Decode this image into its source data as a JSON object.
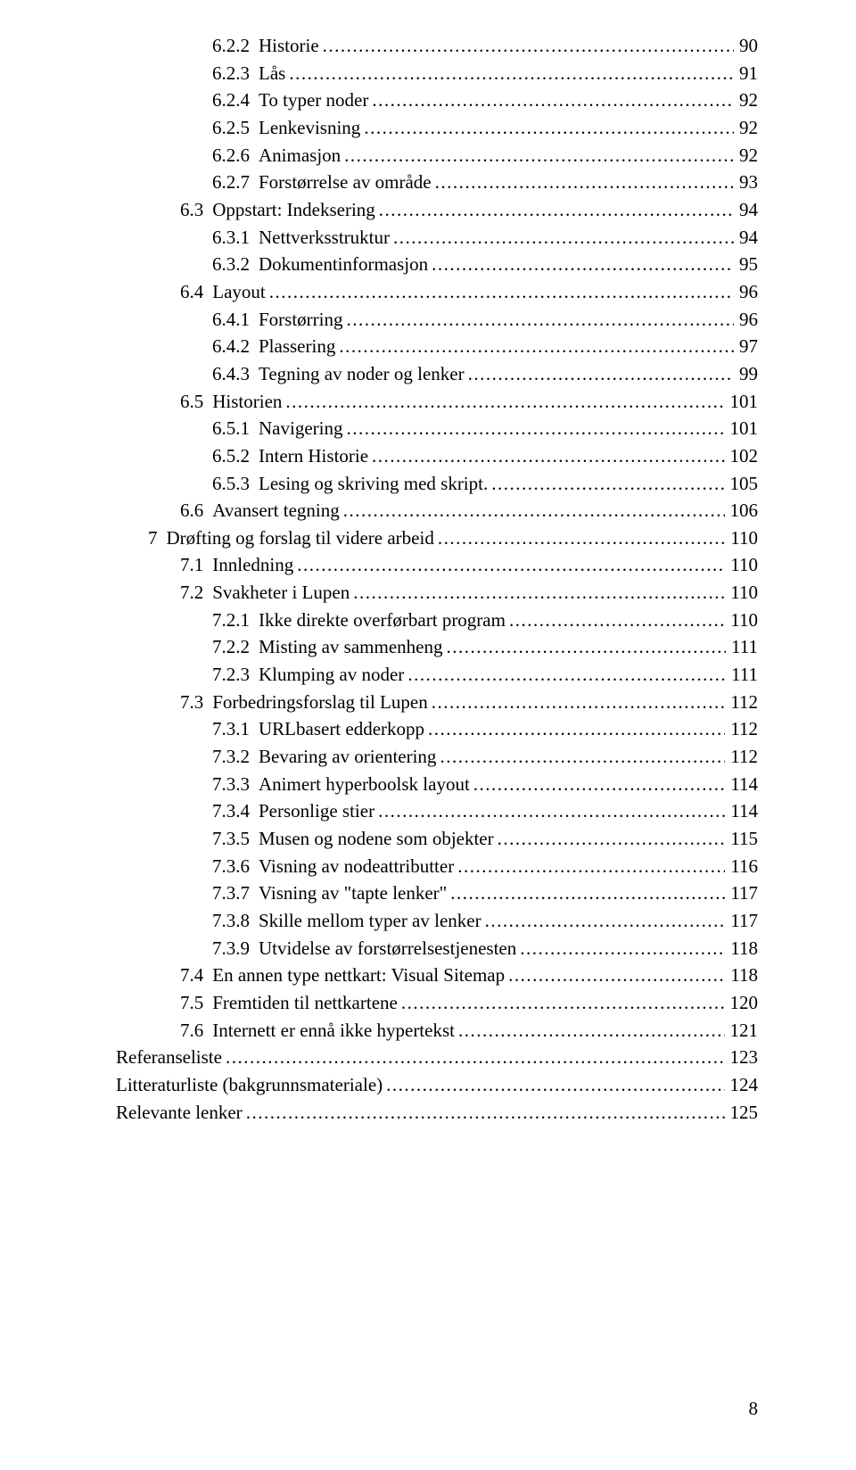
{
  "page_number": "8",
  "style": {
    "font_family": "Times New Roman",
    "font_size_pt": 12,
    "text_color": "#000000",
    "background_color": "#ffffff",
    "leader_char": "."
  },
  "toc": [
    {
      "level": 3,
      "num": "6.2.2",
      "title": "Historie",
      "page": "90"
    },
    {
      "level": 3,
      "num": "6.2.3",
      "title": "Lås",
      "page": "91"
    },
    {
      "level": 3,
      "num": "6.2.4",
      "title": "To typer noder",
      "page": "92"
    },
    {
      "level": 3,
      "num": "6.2.5",
      "title": "Lenkevisning",
      "page": "92"
    },
    {
      "level": 3,
      "num": "6.2.6",
      "title": "Animasjon",
      "page": "92"
    },
    {
      "level": 3,
      "num": "6.2.7",
      "title": "Forstørrelse av område",
      "page": "93"
    },
    {
      "level": 2,
      "num": "6.3",
      "title": "Oppstart: Indeksering",
      "page": "94"
    },
    {
      "level": 3,
      "num": "6.3.1",
      "title": "Nettverksstruktur",
      "page": "94"
    },
    {
      "level": 3,
      "num": "6.3.2",
      "title": "Dokumentinformasjon",
      "page": "95"
    },
    {
      "level": 2,
      "num": "6.4",
      "title": "Layout",
      "page": "96"
    },
    {
      "level": 3,
      "num": "6.4.1",
      "title": "Forstørring",
      "page": "96"
    },
    {
      "level": 3,
      "num": "6.4.2",
      "title": "Plassering",
      "page": "97"
    },
    {
      "level": 3,
      "num": "6.4.3",
      "title": "Tegning av noder og lenker",
      "page": "99"
    },
    {
      "level": 2,
      "num": "6.5",
      "title": "Historien",
      "page": "101"
    },
    {
      "level": 3,
      "num": "6.5.1",
      "title": "Navigering",
      "page": "101"
    },
    {
      "level": 3,
      "num": "6.5.2",
      "title": "Intern Historie",
      "page": "102"
    },
    {
      "level": 3,
      "num": "6.5.3",
      "title": "Lesing og skriving med skript.",
      "page": "105"
    },
    {
      "level": 2,
      "num": "6.6",
      "title": "Avansert tegning",
      "page": "106"
    },
    {
      "level": 1,
      "num": "7",
      "title": "Drøfting og forslag til videre arbeid",
      "page": "110"
    },
    {
      "level": 2,
      "num": "7.1",
      "title": "Innledning",
      "page": "110"
    },
    {
      "level": 2,
      "num": "7.2",
      "title": "Svakheter i Lupen",
      "page": "110"
    },
    {
      "level": 3,
      "num": "7.2.1",
      "title": "Ikke direkte overførbart program",
      "page": "110"
    },
    {
      "level": 3,
      "num": "7.2.2",
      "title": "Misting av sammenheng",
      "page": "111"
    },
    {
      "level": 3,
      "num": "7.2.3",
      "title": "Klumping av noder",
      "page": "111"
    },
    {
      "level": 2,
      "num": "7.3",
      "title": "Forbedringsforslag til Lupen",
      "page": "112"
    },
    {
      "level": 3,
      "num": "7.3.1",
      "title": "URLbasert edderkopp",
      "page": "112"
    },
    {
      "level": 3,
      "num": "7.3.2",
      "title": "Bevaring av orientering",
      "page": "112"
    },
    {
      "level": 3,
      "num": "7.3.3",
      "title": "Animert hyperboolsk layout",
      "page": "114"
    },
    {
      "level": 3,
      "num": "7.3.4",
      "title": "Personlige stier",
      "page": "114"
    },
    {
      "level": 3,
      "num": "7.3.5",
      "title": "Musen og nodene som objekter",
      "page": "115"
    },
    {
      "level": 3,
      "num": "7.3.6",
      "title": "Visning av nodeattributter",
      "page": "116"
    },
    {
      "level": 3,
      "num": "7.3.7",
      "title": "Visning av \"tapte lenker\"",
      "page": "117"
    },
    {
      "level": 3,
      "num": "7.3.8",
      "title": "Skille mellom typer av lenker",
      "page": "117"
    },
    {
      "level": 3,
      "num": "7.3.9",
      "title": "Utvidelse av forstørrelsestjenesten",
      "page": "118"
    },
    {
      "level": 2,
      "num": "7.4",
      "title": "En annen type nettkart: Visual Sitemap",
      "page": "118"
    },
    {
      "level": 2,
      "num": "7.5",
      "title": "Fremtiden til nettkartene",
      "page": "120"
    },
    {
      "level": 2,
      "num": "7.6",
      "title": "Internett er ennå ikke hypertekst",
      "page": "121"
    },
    {
      "level": 0,
      "num": "",
      "title": "Referanseliste",
      "page": "123"
    },
    {
      "level": 0,
      "num": "",
      "title": "Litteraturliste (bakgrunnsmateriale)",
      "page": "124"
    },
    {
      "level": 0,
      "num": "",
      "title": "Relevante lenker",
      "page": "125"
    }
  ]
}
